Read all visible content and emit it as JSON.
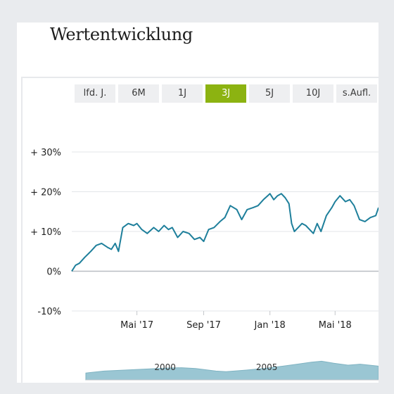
{
  "header": {
    "title": "Wertentwicklung"
  },
  "tabs": [
    {
      "label": "lfd. J.",
      "active": false
    },
    {
      "label": "6M",
      "active": false
    },
    {
      "label": "1J",
      "active": false
    },
    {
      "label": "3J",
      "active": true
    },
    {
      "label": "5J",
      "active": false
    },
    {
      "label": "10J",
      "active": false
    },
    {
      "label": "s.Aufl.",
      "active": false
    }
  ],
  "colors": {
    "line": "#1e7f9b",
    "accent": "#8cb311",
    "grid": "#e3e5e8",
    "navigator": "#9ac6d3"
  },
  "chart_data": {
    "type": "line",
    "title": "",
    "xlabel": "",
    "ylabel": "",
    "y_ticks": [
      {
        "value": 30,
        "label": "+ 30%"
      },
      {
        "value": 20,
        "label": "+ 20%"
      },
      {
        "value": 10,
        "label": "+ 10%"
      },
      {
        "value": 0,
        "label": "0%"
      },
      {
        "value": -10,
        "label": "-10%"
      }
    ],
    "ylim": [
      -10,
      30
    ],
    "x_ticks": [
      {
        "value": "2017-05-01",
        "label": "Mai '17"
      },
      {
        "value": "2017-09-01",
        "label": "Sep '17"
      },
      {
        "value": "2018-01-01",
        "label": "Jan '18"
      },
      {
        "value": "2018-05-01",
        "label": "Mai '18"
      }
    ],
    "xlim": [
      "2017-01-01",
      "2018-07-20"
    ],
    "grid": true,
    "series": [
      {
        "x": [
          "2017-01-01",
          "2017-01-08",
          "2017-01-15",
          "2017-01-25",
          "2017-02-05",
          "2017-02-15",
          "2017-02-25",
          "2017-03-08",
          "2017-03-15",
          "2017-03-22",
          "2017-03-28",
          "2017-04-05",
          "2017-04-15",
          "2017-04-25",
          "2017-05-01",
          "2017-05-10",
          "2017-05-20",
          "2017-06-01",
          "2017-06-10",
          "2017-06-20",
          "2017-06-28",
          "2017-07-05",
          "2017-07-15",
          "2017-07-25",
          "2017-08-05",
          "2017-08-15",
          "2017-08-25",
          "2017-09-01",
          "2017-09-10",
          "2017-09-20",
          "2017-10-01",
          "2017-10-10",
          "2017-10-20",
          "2017-11-01",
          "2017-11-10",
          "2017-11-20",
          "2017-12-01",
          "2017-12-10",
          "2017-12-20",
          "2018-01-01",
          "2018-01-08",
          "2018-01-15",
          "2018-01-22",
          "2018-01-29",
          "2018-02-05",
          "2018-02-10",
          "2018-02-15",
          "2018-02-22",
          "2018-03-01",
          "2018-03-08",
          "2018-03-15",
          "2018-03-22",
          "2018-03-29",
          "2018-04-05",
          "2018-04-15",
          "2018-04-25",
          "2018-05-01",
          "2018-05-10",
          "2018-05-20",
          "2018-05-28",
          "2018-06-05",
          "2018-06-15",
          "2018-06-25",
          "2018-07-05",
          "2018-07-15",
          "2018-07-20"
        ],
        "y": [
          0.0,
          1.5,
          2.0,
          3.5,
          5.0,
          6.5,
          7.0,
          6.0,
          5.5,
          7.0,
          5.0,
          11.0,
          12.0,
          11.5,
          12.0,
          10.5,
          9.5,
          11.0,
          10.0,
          11.5,
          10.5,
          11.0,
          8.5,
          10.0,
          9.5,
          8.0,
          8.5,
          7.5,
          10.5,
          11.0,
          12.5,
          13.5,
          16.5,
          15.5,
          13.0,
          15.5,
          16.0,
          16.5,
          18.0,
          19.5,
          18.0,
          19.0,
          19.5,
          18.5,
          17.0,
          12.0,
          10.0,
          11.0,
          12.0,
          11.5,
          10.5,
          9.5,
          12.0,
          10.0,
          14.0,
          16.0,
          17.5,
          19.0,
          17.5,
          18.0,
          16.5,
          13.0,
          12.5,
          13.5,
          14.0,
          16.0
        ]
      }
    ],
    "navigator": {
      "type": "area",
      "x_ticks": [
        {
          "value": 2000,
          "label": "2000"
        },
        {
          "value": 2005,
          "label": "2005"
        }
      ],
      "xlim": [
        1996.1,
        2010.5
      ],
      "series": [
        {
          "x": [
            1996.1,
            1997,
            1998,
            1999,
            2000,
            2000.8,
            2001.5,
            2002.5,
            2003,
            2004,
            2005,
            2005.8,
            2006.5,
            2007.2,
            2007.7,
            2008.3,
            2009,
            2009.6,
            2010.5
          ],
          "y": [
            0.35,
            0.45,
            0.5,
            0.55,
            0.6,
            0.62,
            0.58,
            0.45,
            0.42,
            0.5,
            0.6,
            0.7,
            0.8,
            0.9,
            0.95,
            0.85,
            0.75,
            0.8,
            0.7
          ]
        }
      ]
    }
  }
}
